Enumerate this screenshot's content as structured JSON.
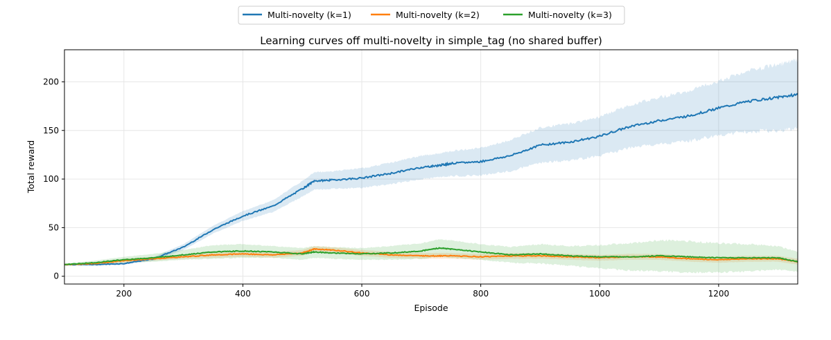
{
  "chart_data": {
    "type": "line",
    "title": "Learning curves off multi-novelty in simple_tag (no shared buffer)",
    "xlabel": "Episode",
    "ylabel": "Total reward",
    "xlim": [
      100,
      1333
    ],
    "ylim": [
      -8,
      233
    ],
    "xticks": [
      200,
      400,
      600,
      800,
      1000,
      1200
    ],
    "yticks": [
      0,
      50,
      100,
      150,
      200
    ],
    "grid": true,
    "legend_placement": "top-center (outside)",
    "x": [
      100,
      150,
      200,
      250,
      300,
      350,
      400,
      450,
      500,
      520,
      550,
      600,
      650,
      700,
      730,
      750,
      800,
      850,
      900,
      950,
      1000,
      1050,
      1100,
      1150,
      1200,
      1250,
      1300,
      1333
    ],
    "series": [
      {
        "name": "Multi-novelty (k=1)",
        "color": "#1f77b4",
        "values": [
          12,
          12,
          13,
          18,
          30,
          48,
          62,
          72,
          90,
          98,
          99,
          101,
          106,
          112,
          114,
          116,
          118,
          124,
          135,
          138,
          144,
          154,
          160,
          165,
          173,
          180,
          184,
          187
        ],
        "spread": [
          1,
          1,
          1,
          2,
          3,
          4,
          5,
          6,
          8,
          9,
          9,
          10,
          11,
          12,
          12,
          13,
          14,
          16,
          18,
          19,
          20,
          22,
          24,
          26,
          28,
          31,
          34,
          35
        ]
      },
      {
        "name": "Multi-novelty (k=2)",
        "color": "#ff7f0e",
        "values": [
          12,
          13,
          16,
          18,
          20,
          22,
          23,
          22,
          24,
          28,
          27,
          24,
          22,
          21,
          21,
          21,
          20,
          21,
          21,
          20,
          19,
          20,
          20,
          18,
          17,
          18,
          18,
          15
        ],
        "spread": [
          1,
          1,
          2,
          2,
          2,
          3,
          3,
          3,
          3,
          3,
          3,
          3,
          3,
          3,
          3,
          3,
          3,
          3,
          3,
          3,
          3,
          3,
          3,
          3,
          3,
          3,
          3,
          3
        ]
      },
      {
        "name": "Multi-novelty (k=3)",
        "color": "#2ca02c",
        "values": [
          12,
          14,
          17,
          19,
          22,
          25,
          26,
          25,
          23,
          25,
          24,
          23,
          24,
          26,
          29,
          28,
          25,
          22,
          23,
          21,
          20,
          20,
          21,
          20,
          19,
          19,
          19,
          15
        ],
        "spread": [
          1,
          2,
          3,
          4,
          5,
          7,
          7,
          6,
          6,
          6,
          6,
          6,
          7,
          8,
          9,
          9,
          8,
          8,
          10,
          10,
          12,
          14,
          16,
          16,
          15,
          14,
          12,
          10
        ]
      }
    ]
  }
}
